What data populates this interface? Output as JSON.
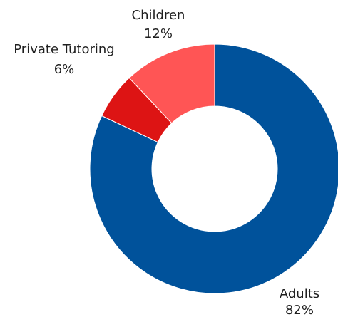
{
  "chart_data": {
    "type": "pie",
    "variant": "donut",
    "title": "",
    "categories": [
      "Adults",
      "Private Tutoring",
      "Children"
    ],
    "values": [
      82,
      6,
      12
    ],
    "value_labels": [
      "82%",
      "6%",
      "12%"
    ],
    "colors": [
      "#00529b",
      "#dd1414",
      "#ff5555"
    ],
    "start_angle_deg": 0,
    "direction": "clockwise",
    "legend": "none"
  }
}
